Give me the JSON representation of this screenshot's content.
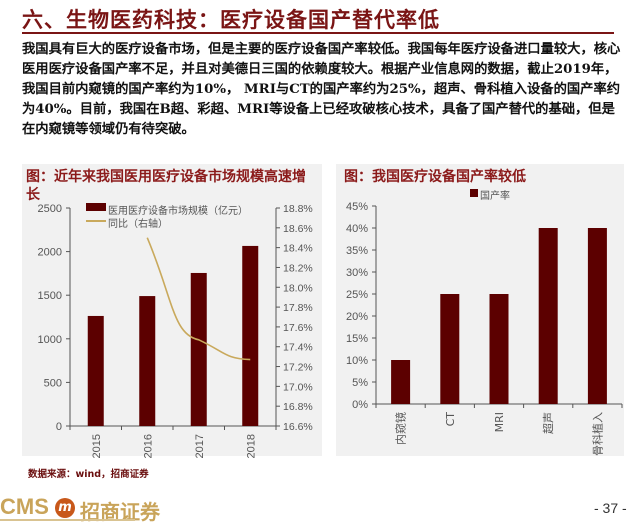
{
  "header": {
    "title": "六、生物医药科技：医疗设备国产替代率低"
  },
  "body": {
    "paragraph": "我国具有巨大的医疗设备市场，但是主要的医疗设备国产率较低。我国每年医疗设备进口量较大，核心医用医疗设备国产率不足，并且对美德日三国的依赖度较大。根据产业信息网的数据，截止2019年，我国目前内窥镜的国产率约为10%， MRI与CT的国产率约为25%，超声、骨科植入设备的国产率约为40%。目前，我国在B超、彩超、MRI等设备上已经攻破核心技术，具备了国产替代的基础，但是在内窥镜等领域仍有待突破。"
  },
  "colors": {
    "bar": "#5c0000",
    "line": "#c9a95c",
    "title": "#7a1515",
    "panel_bg": "#f1f1f1"
  },
  "chart_data": [
    {
      "type": "bar",
      "title": "图：近年来我国医用医疗设备市场规模高速增长",
      "categories": [
        "2015",
        "2016",
        "2017",
        "2018"
      ],
      "series": [
        {
          "name": "医用医疗设备市场规模（亿元）",
          "type": "bar",
          "axis": "left",
          "values": [
            1262,
            1490,
            1755,
            2065
          ]
        },
        {
          "name": "同比（右轴）",
          "type": "line",
          "axis": "right",
          "values": [
            null,
            18.5,
            17.47,
            17.27
          ]
        }
      ],
      "ylim": [
        0,
        2500
      ],
      "yticks": [
        "0",
        "500",
        "1000",
        "1500",
        "2000",
        "2500"
      ],
      "y2lim": [
        16.6,
        18.8
      ],
      "y2ticks": [
        "16.6%",
        "16.8%",
        "17.0%",
        "17.2%",
        "17.4%",
        "17.6%",
        "17.8%",
        "18.0%",
        "18.2%",
        "18.4%",
        "18.6%",
        "18.8%"
      ],
      "legend_position": "top",
      "grid": false
    },
    {
      "type": "bar",
      "title": "图：我国医疗设备国产率较低",
      "categories": [
        "内窥镜",
        "CT",
        "MRI",
        "超声",
        "骨科植入"
      ],
      "series": [
        {
          "name": "国产率",
          "values": [
            10,
            25,
            25,
            40,
            40
          ]
        }
      ],
      "ylim": [
        0,
        45
      ],
      "yticks": [
        "0%",
        "5%",
        "10%",
        "15%",
        "20%",
        "25%",
        "30%",
        "35%",
        "40%",
        "45%"
      ],
      "legend_position": "top",
      "grid": false
    }
  ],
  "left_chart": {
    "title": "图：近年来我国医用医疗设备市场规模高速增长",
    "legend_bar": "医用医疗设备市场规模（亿元）",
    "legend_line": "同比（右轴）"
  },
  "right_chart": {
    "title": "图：我国医疗设备国产率较低",
    "legend": "国产率"
  },
  "footer": {
    "source": "数据来源：wind，招商证券",
    "logo_text": "CMS",
    "logo_mark": "m",
    "logo_cn": "招商证券",
    "page_number": "- 37 -"
  }
}
